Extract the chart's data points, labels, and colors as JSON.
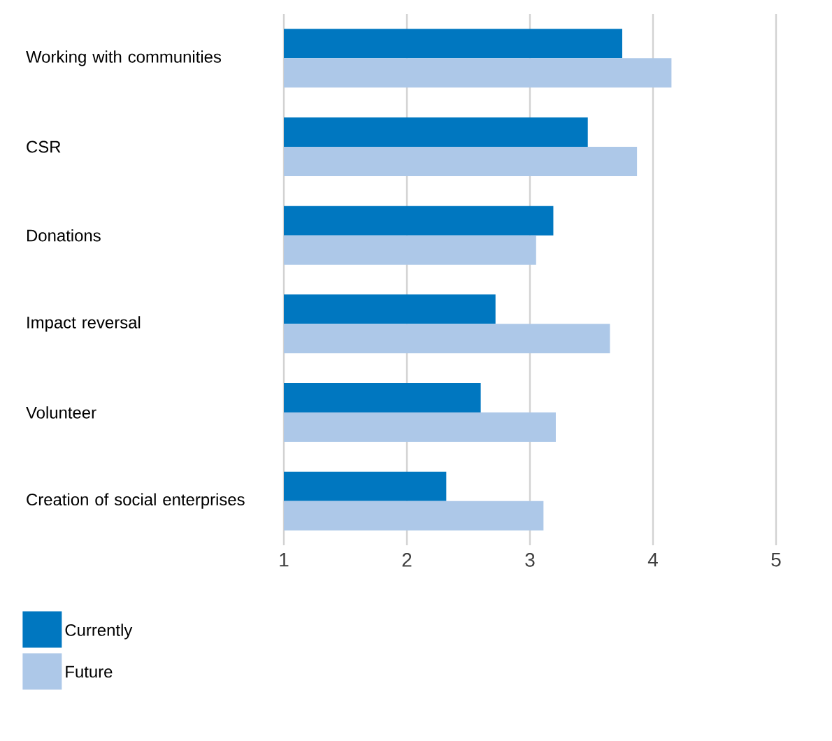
{
  "chart_data": {
    "type": "bar",
    "orientation": "horizontal",
    "categories": [
      "Working with communities",
      "CSR",
      "Donations",
      "Impact reversal",
      "Volunteer",
      "Creation of social enterprises"
    ],
    "series": [
      {
        "name": "Currently",
        "color": "#0077c0",
        "values": [
          3.75,
          3.47,
          3.19,
          2.72,
          2.6,
          2.32
        ]
      },
      {
        "name": "Future",
        "color": "#adc8e8",
        "values": [
          4.15,
          3.87,
          3.05,
          3.65,
          3.21,
          3.11
        ]
      }
    ],
    "xlim": [
      1,
      5
    ],
    "xticks": [
      1,
      2,
      3,
      4,
      5
    ],
    "grid": "x",
    "legend": "bottom left"
  }
}
